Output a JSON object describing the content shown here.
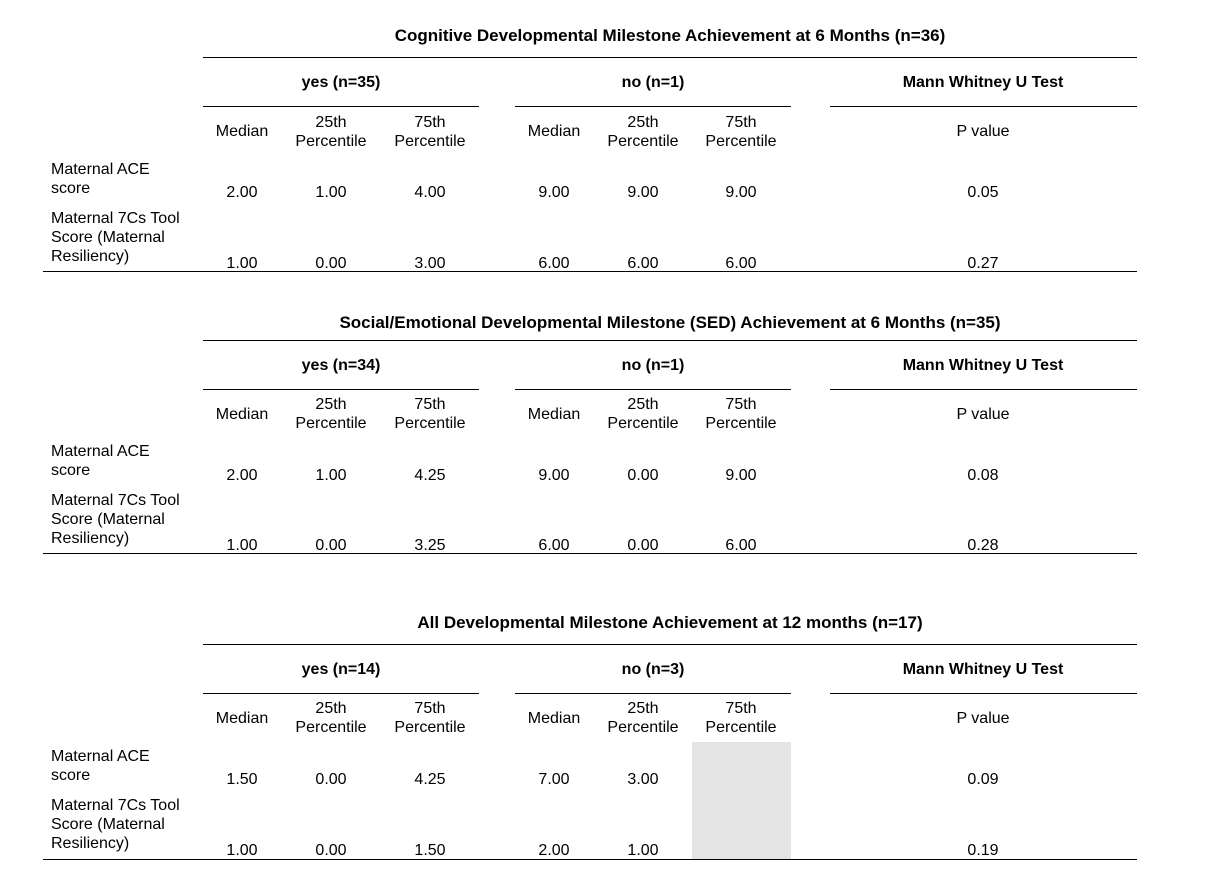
{
  "tables": [
    {
      "title": "Cognitive Developmental Milestone Achievement at 6 Months (n=36)",
      "group_yes": "yes (n=35)",
      "group_no": "no (n=1)",
      "group_test": "Mann Whitney U Test",
      "col_median": "Median",
      "col_25": "25th Percentile",
      "col_75": "75th Percentile",
      "col_p": "P value",
      "rows": [
        {
          "label": "Maternal ACE score",
          "yes_median": "2.00",
          "yes_p25": "1.00",
          "yes_p75": "4.00",
          "no_median": "9.00",
          "no_p25": "9.00",
          "no_p75": "9.00",
          "p_value": "0.05"
        },
        {
          "label": "Maternal 7Cs Tool Score (Maternal Resiliency)",
          "yes_median": "1.00",
          "yes_p25": "0.00",
          "yes_p75": "3.00",
          "no_median": "6.00",
          "no_p25": "6.00",
          "no_p75": "6.00",
          "p_value": "0.27"
        }
      ]
    },
    {
      "title": "Social/Emotional Developmental Milestone (SED) Achievement at 6 Months (n=35)",
      "group_yes": "yes (n=34)",
      "group_no": "no (n=1)",
      "group_test": "Mann Whitney U Test",
      "col_median": "Median",
      "col_25": "25th Percentile",
      "col_75": "75th Percentile",
      "col_p": "P value",
      "rows": [
        {
          "label": "Maternal ACE score",
          "yes_median": "2.00",
          "yes_p25": "1.00",
          "yes_p75": "4.25",
          "no_median": "9.00",
          "no_p25": "0.00",
          "no_p75": "9.00",
          "p_value": "0.08"
        },
        {
          "label": "Maternal 7Cs Tool Score (Maternal Resiliency)",
          "yes_median": "1.00",
          "yes_p25": "0.00",
          "yes_p75": "3.25",
          "no_median": "6.00",
          "no_p25": "0.00",
          "no_p75": "6.00",
          "p_value": "0.28"
        }
      ]
    },
    {
      "title": "All Developmental Milestone Achievement at 12 months (n=17)",
      "group_yes": "yes (n=14)",
      "group_no": "no (n=3)",
      "group_test": "Mann Whitney U Test",
      "col_median": "Median",
      "col_25": "25th Percentile",
      "col_75": "75th Percentile",
      "col_p": "P value",
      "rows": [
        {
          "label": "Maternal ACE score",
          "yes_median": "1.50",
          "yes_p25": "0.00",
          "yes_p75": "4.25",
          "no_median": "7.00",
          "no_p25": "3.00",
          "no_p75": "",
          "p_value": "0.09"
        },
        {
          "label": "Maternal 7Cs Tool Score (Maternal Resiliency)",
          "yes_median": "1.00",
          "yes_p25": "0.00",
          "yes_p75": "1.50",
          "no_median": "2.00",
          "no_p25": "1.00",
          "no_p75": "",
          "p_value": "0.19"
        }
      ]
    }
  ]
}
